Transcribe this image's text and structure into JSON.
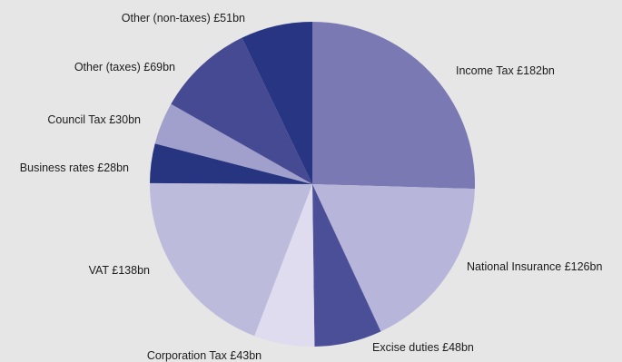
{
  "chart_data": {
    "type": "pie",
    "title": "",
    "start_angle_deg": 0,
    "direction": "clockwise",
    "slices": [
      {
        "label": "Income Tax",
        "value_label": "£182bn",
        "value": 182,
        "color": "#7b79b4",
        "label_text": "Income Tax £182bn"
      },
      {
        "label": "National Insurance",
        "value_label": "£126bn",
        "value": 126,
        "color": "#b8b5da",
        "label_text": "National Insurance £126bn"
      },
      {
        "label": "Excise duties",
        "value_label": "£48bn",
        "value": 48,
        "color": "#4b4f98",
        "label_text": "Excise duties £48bn"
      },
      {
        "label": "Corporation Tax",
        "value_label": "£43bn",
        "value": 43,
        "color": "#dedcee",
        "label_text": "Corporation Tax £43bn"
      },
      {
        "label": "VAT",
        "value_label": "£138bn",
        "value": 138,
        "color": "#bdbbdc",
        "label_text": "VAT £138bn"
      },
      {
        "label": "Business rates",
        "value_label": "£28bn",
        "value": 28,
        "color": "#27347f",
        "label_text": "Business rates £28bn"
      },
      {
        "label": "Council Tax",
        "value_label": "£30bn",
        "value": 30,
        "color": "#a19fcc",
        "label_text": "Council Tax £30bn"
      },
      {
        "label": "Other (taxes)",
        "value_label": "£69bn",
        "value": 69,
        "color": "#464a93",
        "label_text": "Other (taxes) £69bn"
      },
      {
        "label": "Other (non-taxes)",
        "value_label": "£51bn",
        "value": 51,
        "color": "#283582",
        "label_text": "Other (non-taxes) £51bn"
      }
    ]
  }
}
